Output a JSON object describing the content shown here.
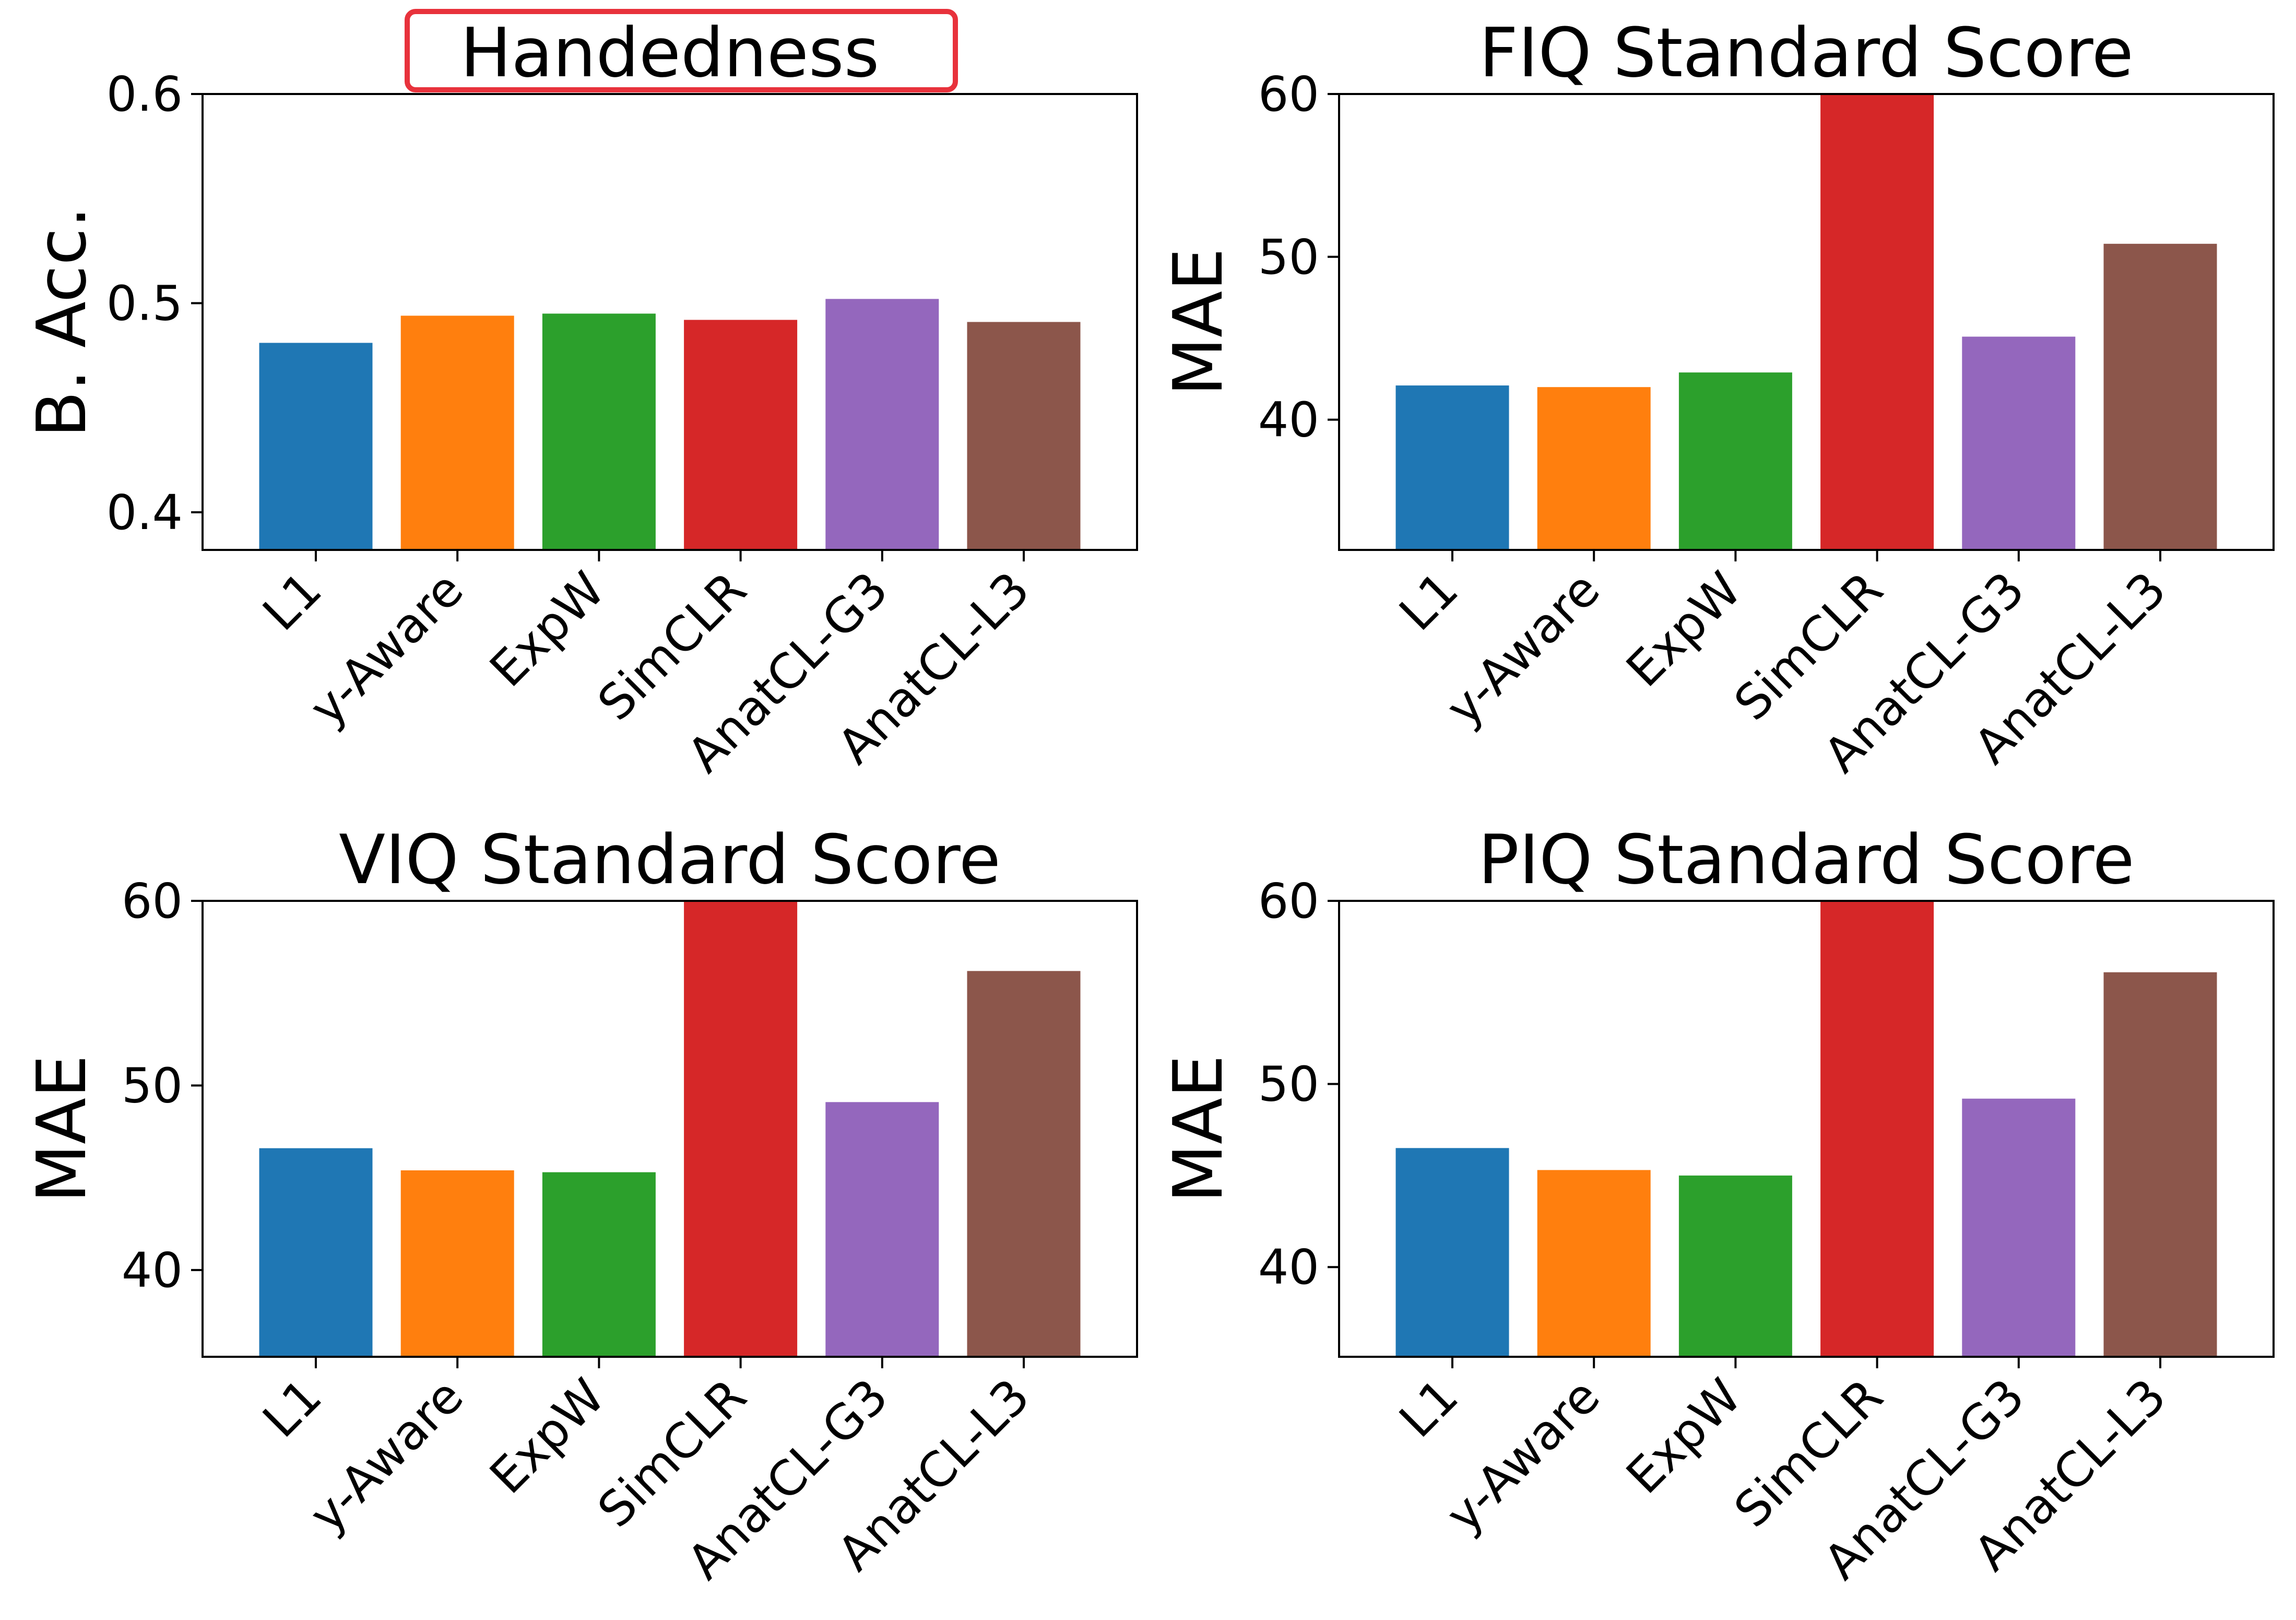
{
  "colors": {
    "L1": "#1f77b4",
    "y-Aware": "#ff7f0e",
    "ExpW": "#2ca02c",
    "SimCLR": "#d62728",
    "AnatCL-G3": "#9467bd",
    "AnatCL-L3": "#8c564b",
    "highlight": "#e8323c"
  },
  "chart_data": [
    {
      "type": "bar",
      "title": "Handedness",
      "title_highlighted": true,
      "ylabel": "B. Acc.",
      "categories": [
        "L1",
        "y-Aware",
        "ExpW",
        "SimCLR",
        "AnatCL-G3",
        "AnatCL-L3"
      ],
      "values": [
        0.481,
        0.494,
        0.495,
        0.492,
        0.502,
        0.491
      ],
      "ylim": [
        0.382,
        0.6
      ],
      "yticks": [
        "0.4",
        "0.5",
        "0.6"
      ],
      "ytick_values": [
        0.4,
        0.5,
        0.6
      ],
      "grid": false
    },
    {
      "type": "bar",
      "title": "FIQ Standard Score",
      "title_highlighted": false,
      "ylabel": "MAE",
      "categories": [
        "L1",
        "y-Aware",
        "ExpW",
        "SimCLR",
        "AnatCL-G3",
        "AnatCL-L3"
      ],
      "values": [
        42.1,
        42.0,
        42.9,
        60.0,
        45.1,
        50.8
      ],
      "ylim": [
        32.0,
        60.0
      ],
      "yticks": [
        "40",
        "50",
        "60"
      ],
      "ytick_values": [
        40,
        50,
        60
      ],
      "grid": false
    },
    {
      "type": "bar",
      "title": "VIQ Standard Score",
      "title_highlighted": false,
      "ylabel": "MAE",
      "categories": [
        "L1",
        "y-Aware",
        "ExpW",
        "SimCLR",
        "AnatCL-G3",
        "AnatCL-L3"
      ],
      "values": [
        46.6,
        45.4,
        45.3,
        60.0,
        49.1,
        56.2
      ],
      "ylim": [
        35.3,
        60.0
      ],
      "yticks": [
        "40",
        "50",
        "60"
      ],
      "ytick_values": [
        40,
        50,
        60
      ],
      "grid": false
    },
    {
      "type": "bar",
      "title": "PIQ Standard Score",
      "title_highlighted": false,
      "ylabel": "MAE",
      "categories": [
        "L1",
        "y-Aware",
        "ExpW",
        "SimCLR",
        "AnatCL-G3",
        "AnatCL-L3"
      ],
      "values": [
        46.5,
        45.3,
        45.0,
        60.0,
        49.2,
        56.1
      ],
      "ylim": [
        35.1,
        60.0
      ],
      "yticks": [
        "40",
        "50",
        "60"
      ],
      "ytick_values": [
        40,
        50,
        60
      ],
      "grid": false
    }
  ]
}
